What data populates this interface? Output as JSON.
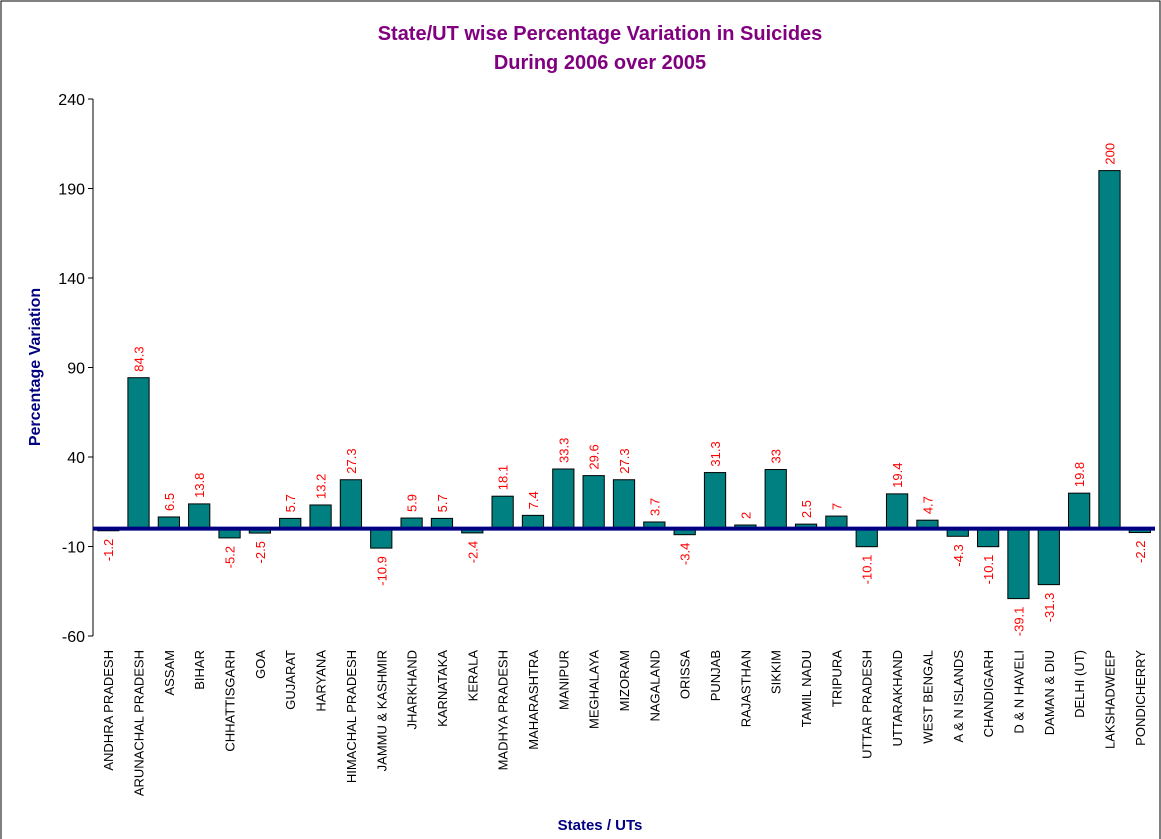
{
  "chart_data": {
    "type": "bar",
    "title": [
      "State/UT wise Percentage Variation in Suicides",
      "During 2006 over 2005"
    ],
    "x_label": "States / UTs",
    "y_label": "Percentage Variation",
    "categories": [
      "ANDHRA PRADESH",
      "ARUNACHAL PRADESH",
      "ASSAM",
      "BIHAR",
      "CHHATTISGARH",
      "GOA",
      "GUJARAT",
      "HARYANA",
      "HIMACHAL PRADESH",
      "JAMMU & KASHMIR",
      "JHARKHAND",
      "KARNATAKA",
      "KERALA",
      "MADHYA PRADESH",
      "MAHARASHTRA",
      "MANIPUR",
      "MEGHALAYA",
      "MIZORAM",
      "NAGALAND",
      "ORISSA",
      "PUNJAB",
      "RAJASTHAN",
      "SIKKIM",
      "TAMIL NADU",
      "TRIPURA",
      "UTTAR PRADESH",
      "UTTARAKHAND",
      "WEST BENGAL",
      "A & N ISLANDS",
      "CHANDIGARH",
      "D & N HAVELI",
      "DAMAN & DIU",
      "DELHI (UT)",
      "LAKSHADWEEP",
      "PONDICHERRY"
    ],
    "values": [
      -1.2,
      84.3,
      6.5,
      13.8,
      -5.2,
      -2.5,
      5.7,
      13.2,
      27.3,
      -10.9,
      5.9,
      5.7,
      -2.4,
      18.1,
      7.4,
      33.3,
      29.6,
      27.3,
      3.7,
      -3.4,
      31.3,
      2,
      33,
      2.5,
      7,
      -10.1,
      19.4,
      4.7,
      -4.3,
      -10.1,
      -39.1,
      -31.3,
      19.8,
      200,
      -2.2
    ],
    "color": "#008080",
    "label_color": "#ff0000",
    "ylim": [
      -60,
      240
    ],
    "yticks": [
      -60,
      -10,
      40,
      90,
      140,
      190,
      240
    ],
    "grid": false
  }
}
